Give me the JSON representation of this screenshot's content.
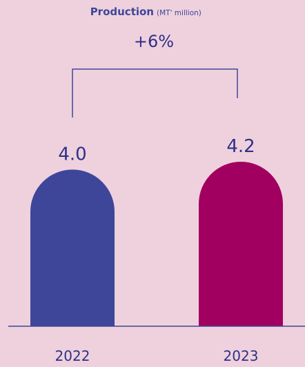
{
  "chart_data": {
    "type": "bar",
    "title": "Production",
    "subtitle": "(MT' million)",
    "categories": [
      "2022",
      "2023"
    ],
    "values": [
      4.0,
      4.2
    ],
    "value_labels": [
      "4.0",
      "4.2"
    ],
    "annotation": "+6%",
    "bar_colors": [
      "#3E4699",
      "#A20060"
    ],
    "ylim": [
      0,
      4.2
    ],
    "grid": false,
    "legend": "none"
  },
  "colors": {
    "background": "#EFD1DD",
    "text": "#2E3188",
    "axis": "#3E4699",
    "bracket": "#3E4699"
  }
}
